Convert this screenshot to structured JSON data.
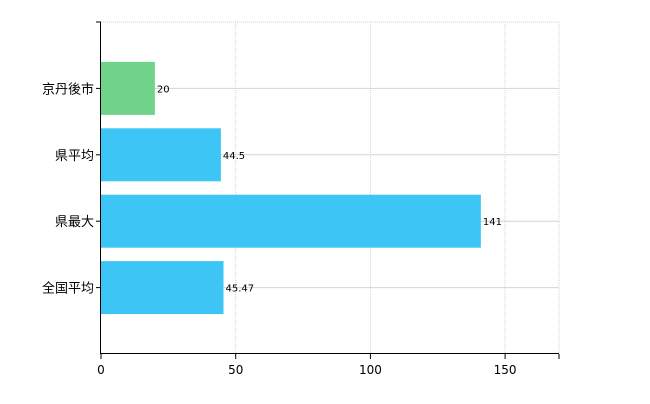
{
  "chart_data": {
    "type": "bar",
    "orientation": "horizontal",
    "categories": [
      "京丹後市",
      "県平均",
      "県最大",
      "全国平均"
    ],
    "values": [
      20,
      44.5,
      141,
      45.47
    ],
    "value_labels": [
      "20",
      "44.5",
      "141",
      "45.47"
    ],
    "title": "",
    "xlabel": "",
    "ylabel": "",
    "xlim": [
      0,
      170
    ],
    "xticks": [
      0,
      50,
      100,
      150
    ],
    "grid": true,
    "colors": {
      "highlight": "#6fd38a",
      "default": "#3dc5f5",
      "grid": "#d4d4d4",
      "axis": "#000000"
    },
    "highlight_index": 0
  }
}
